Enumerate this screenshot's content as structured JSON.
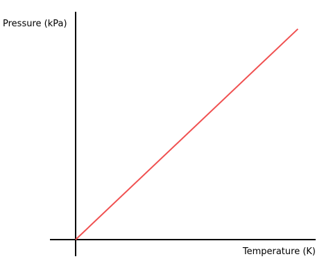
{
  "chart_data": {
    "type": "line",
    "title": "",
    "xlabel": "Temperature (K)",
    "ylabel": "Pressure (kPa)",
    "xlim": [
      0,
      1
    ],
    "ylim": [
      0,
      1
    ],
    "grid": false,
    "ticks_shown": false,
    "series": [
      {
        "color": "#f05050",
        "x": [
          0,
          0.9
        ],
        "y": [
          0,
          0.9
        ]
      }
    ]
  }
}
